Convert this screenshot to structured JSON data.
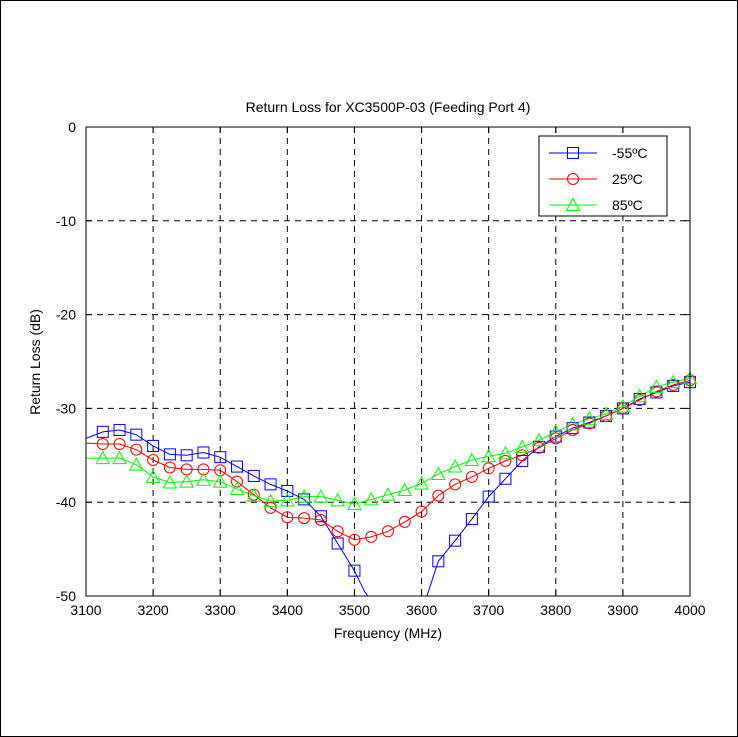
{
  "chart_data": {
    "type": "line",
    "title": "Return Loss for XC3500P-03 (Feeding Port 4)",
    "xlabel": "Frequency (MHz)",
    "ylabel": "Return Loss (dB)",
    "xlim": [
      3100,
      4000
    ],
    "ylim": [
      -50,
      0
    ],
    "xticks": [
      3100,
      3200,
      3300,
      3400,
      3500,
      3600,
      3700,
      3800,
      3900,
      4000
    ],
    "yticks": [
      0,
      -10,
      -20,
      -30,
      -40,
      -50
    ],
    "xtick_labels": [
      "3100",
      "3200",
      "3300",
      "3400",
      "3500",
      "3600",
      "3700",
      "3800",
      "3900",
      "4000"
    ],
    "ytick_labels": [
      "0",
      "-10",
      "-20",
      "-30",
      "-40",
      "-50"
    ],
    "grid": true,
    "legend_position": "top-right",
    "series": [
      {
        "name": "-55ºC",
        "color": "#0000ff",
        "marker": "square",
        "line_points": [
          [
            3100,
            -33.2
          ],
          [
            3125,
            -32.5
          ],
          [
            3150,
            -32.3
          ],
          [
            3175,
            -32.8
          ],
          [
            3200,
            -34.0
          ],
          [
            3225,
            -34.9
          ],
          [
            3250,
            -35.0
          ],
          [
            3275,
            -34.7
          ],
          [
            3300,
            -35.2
          ],
          [
            3325,
            -36.2
          ],
          [
            3350,
            -37.2
          ],
          [
            3375,
            -38.1
          ],
          [
            3400,
            -38.8
          ],
          [
            3425,
            -39.7
          ],
          [
            3450,
            -41.5
          ],
          [
            3475,
            -44.4
          ],
          [
            3500,
            -47.3
          ],
          [
            3515,
            -49.5
          ],
          [
            3520,
            -50.0
          ]
        ],
        "line_points_2": [
          [
            3608,
            -50.0
          ],
          [
            3625,
            -46.3
          ],
          [
            3650,
            -44.1
          ],
          [
            3675,
            -41.8
          ],
          [
            3700,
            -39.4
          ],
          [
            3725,
            -37.5
          ],
          [
            3750,
            -35.6
          ],
          [
            3775,
            -34.1
          ],
          [
            3800,
            -33.0
          ],
          [
            3825,
            -32.1
          ],
          [
            3850,
            -31.5
          ],
          [
            3875,
            -30.8
          ],
          [
            3900,
            -30.0
          ],
          [
            3925,
            -29.0
          ],
          [
            3950,
            -28.3
          ],
          [
            3975,
            -27.6
          ],
          [
            4000,
            -27.2
          ]
        ],
        "marker_x": [
          3125,
          3150,
          3175,
          3200,
          3225,
          3250,
          3275,
          3300,
          3325,
          3350,
          3375,
          3400,
          3425,
          3450,
          3475,
          3500,
          3625,
          3650,
          3675,
          3700,
          3725,
          3750,
          3775,
          3800,
          3825,
          3850,
          3875,
          3900,
          3925,
          3950,
          3975,
          4000
        ],
        "marker_y": [
          -32.5,
          -32.3,
          -32.8,
          -34.0,
          -34.9,
          -35.0,
          -34.7,
          -35.2,
          -36.2,
          -37.2,
          -38.1,
          -38.8,
          -39.7,
          -41.5,
          -44.4,
          -47.3,
          -46.3,
          -44.1,
          -41.8,
          -39.4,
          -37.5,
          -35.6,
          -34.1,
          -33.0,
          -32.1,
          -31.5,
          -30.8,
          -30.0,
          -29.0,
          -28.3,
          -27.6,
          -27.2
        ]
      },
      {
        "name": "25ºC",
        "color": "#ff0000",
        "marker": "circle",
        "x": [
          3100,
          3125,
          3150,
          3175,
          3200,
          3225,
          3250,
          3275,
          3300,
          3325,
          3350,
          3375,
          3400,
          3425,
          3450,
          3475,
          3500,
          3525,
          3550,
          3575,
          3600,
          3625,
          3650,
          3675,
          3700,
          3725,
          3750,
          3775,
          3800,
          3825,
          3850,
          3875,
          3900,
          3925,
          3950,
          3975,
          4000
        ],
        "y": [
          -33.7,
          -33.8,
          -33.8,
          -34.4,
          -35.5,
          -36.3,
          -36.5,
          -36.5,
          -36.6,
          -37.8,
          -39.2,
          -40.6,
          -41.6,
          -41.7,
          -41.9,
          -43.1,
          -44.0,
          -43.7,
          -43.1,
          -42.1,
          -41.0,
          -39.3,
          -38.1,
          -37.3,
          -36.4,
          -35.6,
          -35.0,
          -34.2,
          -33.2,
          -32.3,
          -31.6,
          -30.8,
          -30.0,
          -29.1,
          -28.2,
          -27.5,
          -27.0
        ]
      },
      {
        "name": "85ºC",
        "color": "#00ff00",
        "marker": "triangle",
        "x": [
          3100,
          3125,
          3150,
          3175,
          3200,
          3225,
          3250,
          3275,
          3300,
          3325,
          3350,
          3375,
          3400,
          3425,
          3450,
          3475,
          3500,
          3525,
          3550,
          3575,
          3600,
          3625,
          3650,
          3675,
          3700,
          3725,
          3750,
          3775,
          3800,
          3825,
          3850,
          3875,
          3900,
          3925,
          3950,
          3975,
          4000
        ],
        "y": [
          -35.3,
          -35.3,
          -35.3,
          -36.0,
          -37.3,
          -37.9,
          -37.8,
          -37.6,
          -37.8,
          -38.6,
          -39.3,
          -39.9,
          -39.8,
          -39.4,
          -39.4,
          -39.8,
          -40.2,
          -39.7,
          -39.2,
          -38.7,
          -38.0,
          -37.0,
          -36.2,
          -35.5,
          -35.1,
          -34.8,
          -34.1,
          -33.4,
          -32.5,
          -31.7,
          -31.1,
          -30.6,
          -29.8,
          -28.7,
          -27.7,
          -27.2,
          -26.8
        ]
      }
    ]
  }
}
